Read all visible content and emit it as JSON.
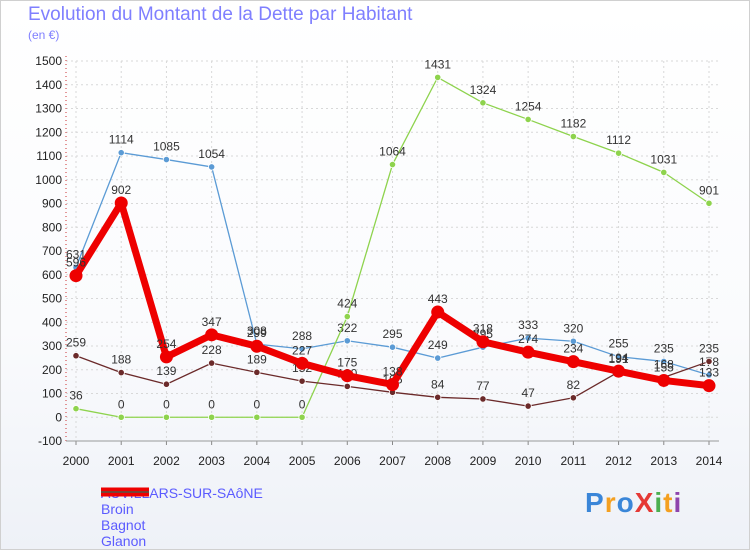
{
  "title": "Evolution du Montant de la Dette par Habitant",
  "subtitle": "(en €)",
  "brand": "ProXiti",
  "brand_colors": [
    "#3a86d8",
    "#f4a020",
    "#3a86d8",
    "#e53935",
    "#4caf50",
    "#f4a020",
    "#8e44ad"
  ],
  "chart_data": {
    "type": "line",
    "categories": [
      "2000",
      "2001",
      "2002",
      "2003",
      "2004",
      "2005",
      "2006",
      "2007",
      "2008",
      "2009",
      "2010",
      "2011",
      "2012",
      "2013",
      "2014"
    ],
    "ylim": [
      -100,
      1500
    ],
    "yticks": [
      "-100",
      "0",
      "100",
      "200",
      "300",
      "400",
      "500",
      "600",
      "700",
      "800",
      "900",
      "1000",
      "1100",
      "1200",
      "1300",
      "1400",
      "1500"
    ],
    "grid": true,
    "legend_position": "bottom-left",
    "series": [
      {
        "name": "Broin",
        "color": "#5b9bd5",
        "values": [
          631,
          1114,
          1085,
          1054,
          308,
          288,
          322,
          295,
          249,
          295,
          333,
          320,
          255,
          235,
          178
        ],
        "labels": [
          "631",
          "1114",
          "1085",
          "1054",
          "308",
          "288",
          "322",
          "295",
          "249",
          "295",
          "333",
          "320",
          "255",
          "235",
          "178"
        ]
      },
      {
        "name": "Bagnot",
        "color": "#8ed34d",
        "values": [
          36,
          0,
          0,
          0,
          0,
          0,
          424,
          1064,
          1431,
          1324,
          1254,
          1182,
          1112,
          1031,
          901
        ],
        "labels": [
          "36",
          "0",
          "0",
          "0",
          "0",
          "0",
          "424",
          "1064",
          "1431",
          "1324",
          "1254",
          "1182",
          "1112",
          "1031",
          "901"
        ]
      },
      {
        "name": "Glanon",
        "color": "#6b2a2a",
        "values": [
          259,
          188,
          139,
          228,
          189,
          152,
          130,
          105,
          84,
          77,
          47,
          82,
          191,
          168,
          235
        ],
        "labels": [
          "259",
          "188",
          "139",
          "228",
          "189",
          "152",
          "130",
          "105",
          "84",
          "77",
          "47",
          "82",
          "191",
          "168",
          "235"
        ]
      },
      {
        "name": "AUVILLARS-SUR-SAôNE",
        "color": "#ee0000",
        "values": [
          596,
          902,
          254,
          347,
          299,
          227,
          175,
          138,
          443,
          318,
          274,
          234,
          194,
          155,
          133
        ],
        "labels": [
          "596",
          "902",
          "254",
          "347",
          "299",
          "227",
          "175",
          "138",
          "443",
          "318",
          "274",
          "234",
          "194",
          "155",
          "133"
        ]
      }
    ],
    "legend_order": [
      "AUVILLARS-SUR-SAôNE",
      "Broin",
      "Bagnot",
      "Glanon"
    ]
  }
}
